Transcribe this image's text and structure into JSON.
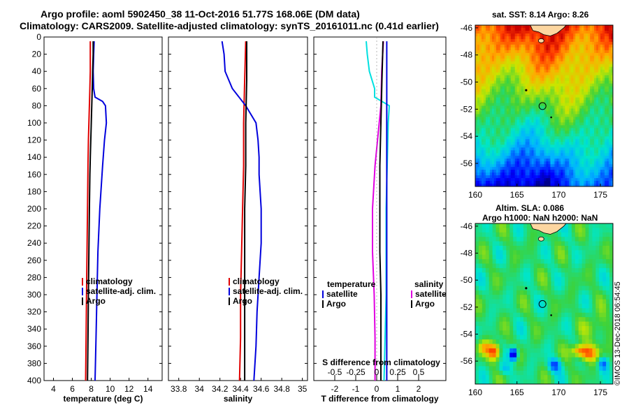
{
  "header": {
    "title_line1": "Argo profile: aoml 5902450_38 11-Oct-2016 51.77S 168.06E (DM data)",
    "title_line2": "Climatology: CARS2009. Satellite-adjusted climatology: synTS_20161011.nc (0.41d earlier)"
  },
  "colors": {
    "climatology": "#e00000",
    "satellite": "#0000dd",
    "argo": "#000000",
    "temp_diff": "#00e0e0",
    "sal_diff": "#e000e0"
  },
  "chart_data": [
    {
      "id": "temperature",
      "type": "line",
      "xlabel": "temperature (deg C)",
      "ylabel": "depth",
      "xlim": [
        3,
        15.5
      ],
      "ylim": [
        0,
        400
      ],
      "xticks": [
        "4",
        "6",
        "8",
        "10",
        "12",
        "14"
      ],
      "xtick_values": [
        4,
        6,
        8,
        10,
        12,
        14
      ],
      "yticks": [
        "0",
        "20",
        "40",
        "60",
        "80",
        "100",
        "120",
        "140",
        "160",
        "180",
        "200",
        "220",
        "240",
        "260",
        "280",
        "300",
        "320",
        "340",
        "360",
        "380",
        "400"
      ],
      "legend": [
        "climatology",
        "satellite-adj. clim.",
        "Argo"
      ],
      "series": [
        {
          "name": "climatology",
          "depth": [
            5,
            20,
            40,
            60,
            80,
            100,
            120,
            150,
            200,
            250,
            300,
            350,
            400
          ],
          "values": [
            7.9,
            7.9,
            7.9,
            7.85,
            7.8,
            7.75,
            7.7,
            7.65,
            7.6,
            7.55,
            7.5,
            7.45,
            7.4
          ]
        },
        {
          "name": "satellite-adj. clim.",
          "depth": [
            5,
            20,
            40,
            60,
            70,
            75,
            80,
            100,
            120,
            150,
            200,
            250,
            300,
            350,
            400
          ],
          "values": [
            8.3,
            8.25,
            8.2,
            8.25,
            8.4,
            9.2,
            9.5,
            9.6,
            9.4,
            9.2,
            8.9,
            8.7,
            8.6,
            8.5,
            8.4
          ]
        },
        {
          "name": "Argo",
          "depth": [
            5,
            20,
            40,
            60,
            80,
            100,
            120,
            140,
            160,
            200,
            250,
            300,
            350,
            400
          ],
          "values": [
            8.2,
            8.2,
            8.15,
            8.1,
            8.05,
            8.0,
            7.95,
            7.9,
            7.85,
            7.8,
            7.75,
            7.7,
            7.65,
            7.6
          ]
        }
      ]
    },
    {
      "id": "salinity",
      "type": "line",
      "xlabel": "salinity",
      "ylabel": "depth",
      "xlim": [
        33.7,
        35.05
      ],
      "ylim": [
        0,
        400
      ],
      "xticks": [
        "33.8",
        "34",
        "34.2",
        "34.4",
        "34.6",
        "34.8",
        "35"
      ],
      "xtick_values": [
        33.8,
        34.0,
        34.2,
        34.4,
        34.6,
        34.8,
        35.0
      ],
      "legend": [
        "climatology",
        "satellite-adj. clim.",
        "Argo"
      ],
      "series": [
        {
          "name": "climatology",
          "depth": [
            5,
            50,
            100,
            150,
            200,
            250,
            300,
            350,
            400
          ],
          "values": [
            34.45,
            34.44,
            34.43,
            34.43,
            34.42,
            34.41,
            34.4,
            34.4,
            34.39
          ]
        },
        {
          "name": "satellite-adj. clim.",
          "depth": [
            5,
            20,
            40,
            60,
            80,
            100,
            120,
            140,
            160,
            200,
            240,
            280,
            320,
            360,
            400
          ],
          "values": [
            34.22,
            34.24,
            34.25,
            34.32,
            34.45,
            34.55,
            34.57,
            34.58,
            34.58,
            34.6,
            34.6,
            34.58,
            34.56,
            34.55,
            34.53
          ]
        },
        {
          "name": "Argo",
          "depth": [
            5,
            50,
            100,
            150,
            200,
            250,
            300,
            350,
            400
          ],
          "values": [
            34.46,
            34.46,
            34.45,
            34.45,
            34.44,
            34.44,
            34.44,
            34.44,
            34.44
          ]
        }
      ]
    },
    {
      "id": "difference",
      "type": "line",
      "xlabel": "T difference from climatology",
      "xlabel_top": "S difference from climatology",
      "ylabel": "depth",
      "xlim": [
        -3,
        3.3
      ],
      "ylim": [
        0,
        400
      ],
      "xticks": [
        "-2",
        "-1",
        "0",
        "1",
        "2"
      ],
      "xtick_values": [
        -2,
        -1,
        0,
        1,
        2
      ],
      "s_ticks": [
        "-0.5",
        "-0.25",
        "0",
        "0.25",
        "0.5"
      ],
      "s_tick_values": [
        -0.5,
        -0.25,
        0,
        0.25,
        0.5
      ],
      "s_per_t": 0.25,
      "legend_left": [
        "temperature",
        "satellite",
        "Argo"
      ],
      "legend_right": [
        "salinity",
        "satellite",
        "Argo"
      ],
      "series": [
        {
          "name": "temperature satellite",
          "depth": [
            5,
            20,
            40,
            60,
            70,
            80,
            100,
            150,
            200,
            250,
            300,
            350,
            400
          ],
          "values": [
            -0.5,
            -0.45,
            -0.35,
            -0.1,
            -0.1,
            0.6,
            0.55,
            0.5,
            0.45,
            0.45,
            0.45,
            0.4,
            0.35
          ]
        },
        {
          "name": "temperature Argo",
          "depth": [
            5,
            50,
            100,
            150,
            200,
            250,
            300,
            350,
            400
          ],
          "values": [
            0.3,
            0.25,
            0.2,
            0.15,
            0.15,
            0.15,
            0.2,
            0.2,
            0.2
          ]
        },
        {
          "name": "salinity satellite",
          "depth": [
            5,
            40,
            80,
            100,
            150,
            200,
            250,
            300,
            350,
            400
          ],
          "values": [
            0.08,
            0.06,
            0.05,
            0.03,
            -0.02,
            -0.05,
            -0.05,
            -0.03,
            -0.02,
            -0.02
          ]
        },
        {
          "name": "salinity Argo",
          "depth": [
            5,
            40,
            80,
            100,
            150,
            200,
            250,
            300,
            350,
            400
          ],
          "values": [
            0.12,
            0.12,
            0.12,
            0.12,
            0.12,
            0.12,
            0.12,
            0.12,
            0.12,
            0.12
          ]
        }
      ]
    },
    {
      "id": "sst-map",
      "type": "heatmap",
      "title": "sat. SST: 8.14 Argo: 8.26",
      "xlim": [
        160,
        176.5
      ],
      "ylim": [
        -57.7,
        -45.8
      ],
      "xticks": [
        "160",
        "165",
        "170",
        "175"
      ],
      "xtick_values": [
        160,
        165,
        170,
        175
      ],
      "yticks": [
        "-46",
        "-48",
        "-50",
        "-52",
        "-54",
        "-56"
      ],
      "ytick_values": [
        -46,
        -48,
        -50,
        -52,
        -54,
        -56
      ],
      "argo_position": [
        168.06,
        -51.77
      ]
    },
    {
      "id": "sla-map",
      "type": "heatmap",
      "title": "Altim. SLA: 0.086",
      "subtitle": "Argo h1000: NaN h2000: NaN",
      "xlim": [
        160,
        176.5
      ],
      "ylim": [
        -57.7,
        -45.8
      ],
      "xticks": [
        "160",
        "165",
        "170",
        "175"
      ],
      "xtick_values": [
        160,
        165,
        170,
        175
      ],
      "yticks": [
        "-46",
        "-48",
        "-50",
        "-52",
        "-54",
        "-56"
      ],
      "ytick_values": [
        -46,
        -48,
        -50,
        -52,
        -54,
        -56
      ],
      "argo_position": [
        168.06,
        -51.77
      ]
    }
  ],
  "footer": {
    "credit": "©IMOS 13-Dec-2018 06:54:45"
  }
}
